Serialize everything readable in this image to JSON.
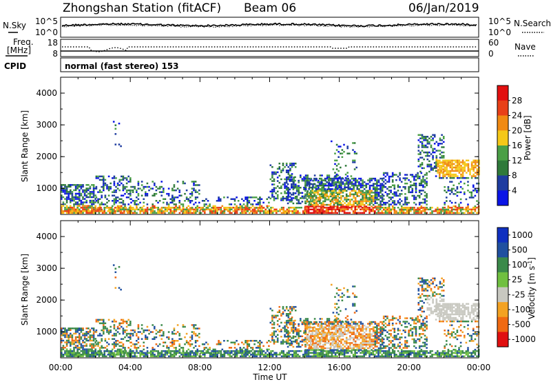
{
  "header": {
    "title": "Zhongshan Station (fitACF)",
    "beam": "Beam 06",
    "date": "06/Jan/2019"
  },
  "top_panel": {
    "left_label": "N.Sky",
    "right_label": "N.Search",
    "left_ticks": [
      "10^5",
      "10^0"
    ],
    "right_ticks": [
      "10^5",
      "10^0"
    ]
  },
  "freq_panel": {
    "left_label_1": "Freq.",
    "left_label_2": "[MHz]",
    "right_label": "Nave",
    "left_ticks": [
      "18",
      "8"
    ],
    "right_ticks": [
      "60",
      "0"
    ]
  },
  "cpid": {
    "label": "CPID",
    "text": "normal (fast stereo) 153"
  },
  "x_axis": {
    "label": "Time UT",
    "ticks": [
      "00:00",
      "04:00",
      "08:00",
      "12:00",
      "16:00",
      "20:00",
      "00:00"
    ]
  },
  "colors": {
    "power": [
      "#0a14e6",
      "#1e3ca0",
      "#2f7a3a",
      "#4a9f46",
      "#f5c818",
      "#f08a12",
      "#e84018",
      "#e21010"
    ],
    "velocity": [
      "#e01010",
      "#f06a12",
      "#f3a222",
      "#c8c8c0",
      "#70c040",
      "#3b8a4a",
      "#2050a0",
      "#1030c0"
    ]
  },
  "chart_data": [
    {
      "type": "heatmap",
      "title": "",
      "xlabel": "Time UT",
      "ylabel": "Slant Range [km]",
      "ylim": [
        180,
        4500
      ],
      "yticks": [
        "1000",
        "2000",
        "3000",
        "4000"
      ],
      "colorbar": {
        "label": "Power [dB]",
        "range": [
          0,
          32
        ],
        "ticks": [
          "4",
          "8",
          "12",
          "16",
          "20",
          "24",
          "28"
        ]
      }
    },
    {
      "type": "heatmap",
      "title": "",
      "xlabel": "Time UT",
      "ylabel": "Slant Range [km]",
      "ylim": [
        180,
        4500
      ],
      "yticks": [
        "1000",
        "2000",
        "3000",
        "4000"
      ],
      "colorbar": {
        "label": "Velocity [m s",
        "label_sup": "-1",
        "label_end": "]",
        "ticks": [
          "1000",
          "500",
          "100",
          "25",
          "-25",
          "-100",
          "-500",
          "-1000"
        ]
      }
    }
  ]
}
